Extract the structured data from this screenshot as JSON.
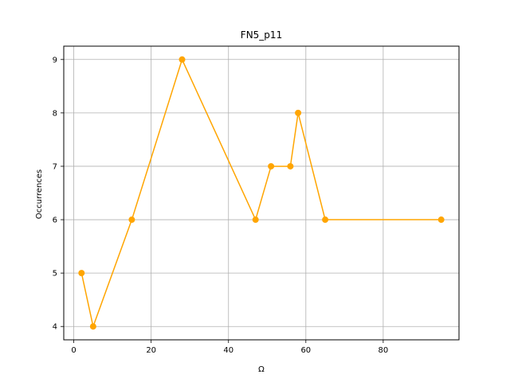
{
  "chart_data": {
    "type": "line",
    "title": "FN5_p11",
    "xlabel": "Ω",
    "ylabel": "Occurrences",
    "x": [
      2,
      5,
      15,
      28,
      47,
      51,
      56,
      58,
      65,
      95
    ],
    "series": [
      {
        "values": [
          5,
          4,
          6,
          9,
          6,
          7,
          7,
          8,
          6,
          6
        ]
      }
    ],
    "xlim": [
      -2.6,
      99.6
    ],
    "ylim": [
      3.75,
      9.25
    ],
    "xticks": [
      0,
      20,
      40,
      60,
      80
    ],
    "yticks": [
      4,
      5,
      6,
      7,
      8,
      9
    ],
    "grid": true,
    "line_color": "#FFA500",
    "marker": "circle"
  }
}
